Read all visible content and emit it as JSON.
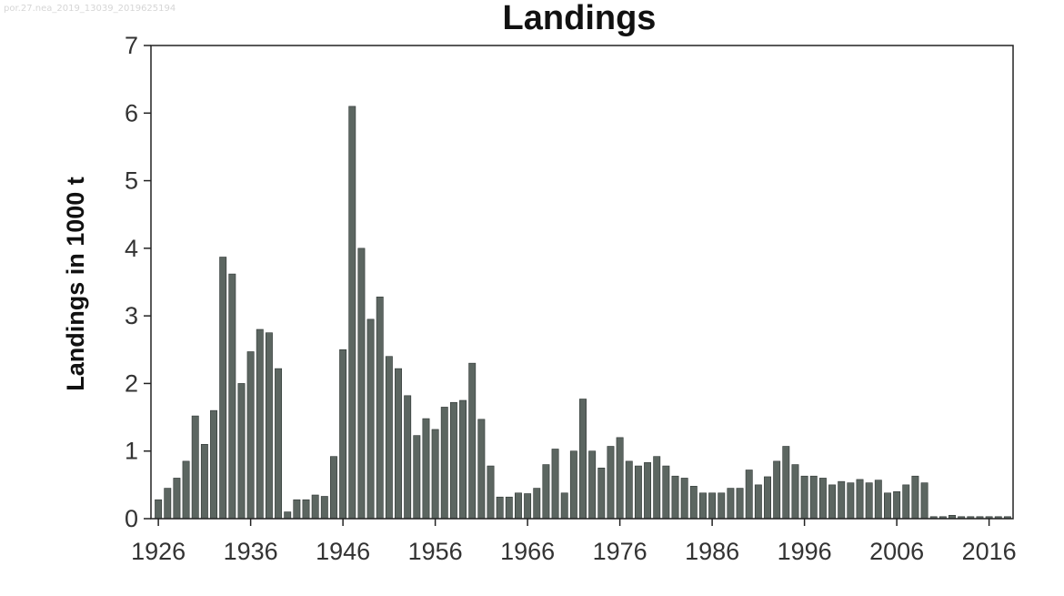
{
  "watermark": "por.27.nea_2019_13039_2019625194",
  "chart_data": {
    "type": "bar",
    "title": "Landings",
    "xlabel": "",
    "ylabel": "Landings in 1000 t",
    "ylim": [
      0,
      7
    ],
    "yticks": [
      0,
      1,
      2,
      3,
      4,
      5,
      6,
      7
    ],
    "xtick_labels": [
      "1926",
      "1936",
      "1946",
      "1956",
      "1966",
      "1976",
      "1986",
      "1996",
      "2006",
      "2016"
    ],
    "xrange": [
      1925.2,
      2018.6
    ],
    "grid": false,
    "legend": "none",
    "bar_color": "#5c6661",
    "years": [
      1926,
      1927,
      1928,
      1929,
      1930,
      1931,
      1932,
      1933,
      1934,
      1935,
      1936,
      1937,
      1938,
      1939,
      1940,
      1941,
      1942,
      1943,
      1944,
      1945,
      1946,
      1947,
      1948,
      1949,
      1950,
      1951,
      1952,
      1953,
      1954,
      1955,
      1956,
      1957,
      1958,
      1959,
      1960,
      1961,
      1962,
      1963,
      1964,
      1965,
      1966,
      1967,
      1968,
      1969,
      1970,
      1971,
      1972,
      1973,
      1974,
      1975,
      1976,
      1977,
      1978,
      1979,
      1980,
      1981,
      1982,
      1983,
      1984,
      1985,
      1986,
      1987,
      1988,
      1989,
      1990,
      1991,
      1992,
      1993,
      1994,
      1995,
      1996,
      1997,
      1998,
      1999,
      2000,
      2001,
      2002,
      2003,
      2004,
      2005,
      2006,
      2007,
      2008,
      2009,
      2010,
      2011,
      2012,
      2013,
      2014,
      2015,
      2016,
      2017,
      2018
    ],
    "values": [
      0.28,
      0.45,
      0.6,
      0.85,
      1.52,
      1.1,
      1.6,
      3.87,
      3.62,
      2.0,
      2.47,
      2.8,
      2.75,
      2.22,
      0.1,
      0.28,
      0.28,
      0.35,
      0.33,
      0.92,
      2.5,
      6.1,
      4.0,
      2.95,
      3.28,
      2.4,
      2.22,
      1.82,
      1.23,
      1.48,
      1.32,
      1.65,
      1.72,
      1.75,
      2.3,
      1.47,
      0.78,
      0.32,
      0.32,
      0.38,
      0.37,
      0.45,
      0.8,
      1.03,
      0.38,
      1.0,
      1.77,
      1.0,
      0.75,
      1.07,
      1.2,
      0.85,
      0.78,
      0.83,
      0.92,
      0.78,
      0.63,
      0.6,
      0.48,
      0.38,
      0.38,
      0.38,
      0.45,
      0.45,
      0.72,
      0.5,
      0.62,
      0.85,
      1.07,
      0.8,
      0.63,
      0.63,
      0.6,
      0.5,
      0.55,
      0.53,
      0.58,
      0.53,
      0.57,
      0.38,
      0.4,
      0.5,
      0.63,
      0.53,
      0.03,
      0.03,
      0.05,
      0.03,
      0.03,
      0.03,
      0.03,
      0.03,
      0.03
    ]
  }
}
